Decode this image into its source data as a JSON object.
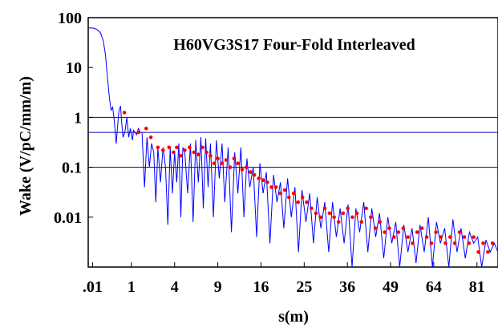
{
  "chart_data": {
    "type": "line",
    "title": "H60VG3S17 Four-Fold Interleaved",
    "xlabel": "s(m)",
    "ylabel": "Wake (V/pC/mm/m)",
    "x_scale": "sqrt",
    "y_scale": "log",
    "xlim": [
      0,
      90
    ],
    "ylim": [
      0.001,
      100
    ],
    "x_ticks": [
      {
        "value": 0.01,
        "label": ".01"
      },
      {
        "value": 1,
        "label": "1"
      },
      {
        "value": 4,
        "label": "4"
      },
      {
        "value": 9,
        "label": "9"
      },
      {
        "value": 16,
        "label": "16"
      },
      {
        "value": 25,
        "label": "25"
      },
      {
        "value": 36,
        "label": "36"
      },
      {
        "value": 49,
        "label": "49"
      },
      {
        "value": 64,
        "label": "64"
      },
      {
        "value": 81,
        "label": "81"
      }
    ],
    "y_ticks": [
      {
        "value": 100,
        "label": "100"
      },
      {
        "value": 10,
        "label": "10"
      },
      {
        "value": 1,
        "label": "1"
      },
      {
        "value": 0.1,
        "label": "0.1"
      },
      {
        "value": 0.01,
        "label": "0.01"
      }
    ],
    "reference_lines": [
      1,
      0.5,
      0.1
    ],
    "grid": false,
    "colors": {
      "line": "#0000ff",
      "markers": "#ff0000",
      "reference": "#0000aa",
      "frame": "#000000"
    },
    "series": [
      {
        "style": "line",
        "x": [
          0,
          0.01,
          0.02,
          0.04,
          0.08,
          0.12,
          0.16,
          0.2,
          0.24,
          0.28,
          0.32,
          0.36,
          0.42,
          0.5,
          0.56,
          0.6,
          0.65,
          0.72,
          0.8,
          0.88,
          0.95,
          1.0,
          1.05,
          1.1,
          1.18,
          1.25,
          1.35,
          1.45,
          1.55,
          1.7,
          1.85,
          2.0,
          2.15,
          2.3,
          2.45,
          2.6,
          2.8,
          3.0,
          3.2,
          3.4,
          3.6,
          3.8,
          4.0,
          4.2,
          4.4,
          4.6,
          4.8,
          5.0,
          5.3,
          5.6,
          5.9,
          6.2,
          6.5,
          6.8,
          7.1,
          7.4,
          7.7,
          8.0,
          8.4,
          8.8,
          9.2,
          9.6,
          10.0,
          10.5,
          11.0,
          11.5,
          12.0,
          12.5,
          13.0,
          13.5,
          14.0,
          14.6,
          15.2,
          15.8,
          16.4,
          17.0,
          17.7,
          18.4,
          19.1,
          19.8,
          20.5,
          21.3,
          22.1,
          22.9,
          23.7,
          24.5,
          25.4,
          26.3,
          27.2,
          28.1,
          29.0,
          30.0,
          31.0,
          32.0,
          33.0,
          34.0,
          35.1,
          36.2,
          37.3,
          38.4,
          39.5,
          40.7,
          41.9,
          43.1,
          44.3,
          45.5,
          46.8,
          48.1,
          49.4,
          50.7,
          52.0,
          53.4,
          54.8,
          56.2,
          57.6,
          59.0,
          60.5,
          62.0,
          63.5,
          65.0,
          66.5,
          68.1,
          69.7,
          71.3,
          72.9,
          74.5,
          76.2,
          77.9,
          79.6,
          81.3,
          83.0,
          84.8,
          86.6,
          88.4,
          90.0
        ],
        "y": [
          62,
          62,
          61,
          58,
          50,
          35,
          18,
          6,
          2.5,
          1.4,
          1.6,
          0.9,
          0.3,
          1.3,
          1.7,
          0.8,
          0.4,
          0.5,
          1.0,
          0.4,
          0.6,
          0.45,
          0.35,
          0.55,
          0.5,
          0.45,
          0.6,
          0.5,
          0.5,
          0.04,
          0.4,
          0.1,
          0.3,
          0.2,
          0.02,
          0.25,
          0.05,
          0.25,
          0.1,
          0.007,
          0.25,
          0.03,
          0.2,
          0.05,
          0.3,
          0.01,
          0.25,
          0.2,
          0.03,
          0.3,
          0.008,
          0.35,
          0.05,
          0.4,
          0.015,
          0.38,
          0.04,
          0.3,
          0.01,
          0.35,
          0.06,
          0.3,
          0.02,
          0.25,
          0.005,
          0.2,
          0.03,
          0.25,
          0.01,
          0.15,
          0.04,
          0.1,
          0.004,
          0.12,
          0.03,
          0.08,
          0.003,
          0.07,
          0.02,
          0.05,
          0.006,
          0.06,
          0.01,
          0.04,
          0.002,
          0.035,
          0.008,
          0.03,
          0.003,
          0.025,
          0.006,
          0.02,
          0.002,
          0.02,
          0.004,
          0.015,
          0.003,
          0.018,
          0.001,
          0.015,
          0.005,
          0.02,
          0.002,
          0.015,
          0.004,
          0.012,
          0.0015,
          0.01,
          0.003,
          0.008,
          0.001,
          0.007,
          0.002,
          0.006,
          0.0012,
          0.007,
          0.002,
          0.01,
          0.001,
          0.008,
          0.003,
          0.006,
          0.001,
          0.009,
          0.002,
          0.006,
          0.0015,
          0.005,
          0.003,
          0.004,
          0.001,
          0.0035,
          0.002,
          0.003,
          0.002
        ]
      },
      {
        "style": "markers",
        "x": [
          0.7,
          1.35,
          1.8,
          2.1,
          2.6,
          3.0,
          3.5,
          3.9,
          4.2,
          4.6,
          5.0,
          5.5,
          6.0,
          6.5,
          7.0,
          7.5,
          8.0,
          8.5,
          9.0,
          9.6,
          10.2,
          10.8,
          11.4,
          12.0,
          12.7,
          13.4,
          14.1,
          14.8,
          15.6,
          16.4,
          17.2,
          18.0,
          18.9,
          19.8,
          20.7,
          21.6,
          22.6,
          23.6,
          24.6,
          25.6,
          26.7,
          27.8,
          28.9,
          30.0,
          31.2,
          32.4,
          33.6,
          34.8,
          36.1,
          37.4,
          38.7,
          40.0,
          41.4,
          42.8,
          44.2,
          45.6,
          47.1,
          48.6,
          50.1,
          51.6,
          53.2,
          54.8,
          56.4,
          58.0,
          59.7,
          61.4,
          63.1,
          64.8,
          66.6,
          68.4,
          70.2,
          72.0,
          73.9,
          75.8,
          77.7,
          79.6,
          81.6,
          83.6,
          85.6,
          87.6
        ],
        "y": [
          1.25,
          0.5,
          0.6,
          0.4,
          0.25,
          0.22,
          0.25,
          0.2,
          0.25,
          0.17,
          0.22,
          0.25,
          0.2,
          0.18,
          0.25,
          0.2,
          0.17,
          0.12,
          0.15,
          0.12,
          0.14,
          0.1,
          0.15,
          0.12,
          0.09,
          0.1,
          0.08,
          0.07,
          0.06,
          0.055,
          0.05,
          0.04,
          0.04,
          0.03,
          0.035,
          0.025,
          0.03,
          0.02,
          0.025,
          0.02,
          0.015,
          0.012,
          0.01,
          0.015,
          0.012,
          0.01,
          0.008,
          0.012,
          0.015,
          0.01,
          0.012,
          0.008,
          0.015,
          0.01,
          0.006,
          0.008,
          0.005,
          0.006,
          0.004,
          0.005,
          0.006,
          0.004,
          0.003,
          0.005,
          0.006,
          0.004,
          0.003,
          0.005,
          0.004,
          0.003,
          0.004,
          0.003,
          0.005,
          0.004,
          0.003,
          0.004,
          0.002,
          0.003,
          0.002,
          0.003
        ]
      }
    ]
  }
}
